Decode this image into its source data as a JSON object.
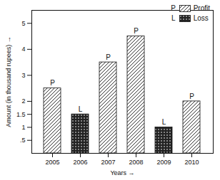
{
  "chart_data": {
    "type": "bar",
    "x_label": "Years →",
    "y_label": "Amount (in thousand rupees) →",
    "categories": [
      "2005",
      "2006",
      "2007",
      "2008",
      "2009",
      "2010"
    ],
    "series": [
      {
        "name": "Profit",
        "label": "P",
        "color": "#333333",
        "values": [
          2.5,
          null,
          3.5,
          4.5,
          null,
          2
        ]
      },
      {
        "name": "Loss",
        "label": "L",
        "color": "#222222",
        "values": [
          null,
          1.5,
          null,
          null,
          1,
          null
        ]
      }
    ],
    "ylim": [
      0,
      5.5
    ],
    "yticks": [
      {
        "value": 0.5,
        "label": ".5"
      },
      1,
      1.5,
      2,
      3,
      4,
      5
    ],
    "legend": "top-right"
  }
}
